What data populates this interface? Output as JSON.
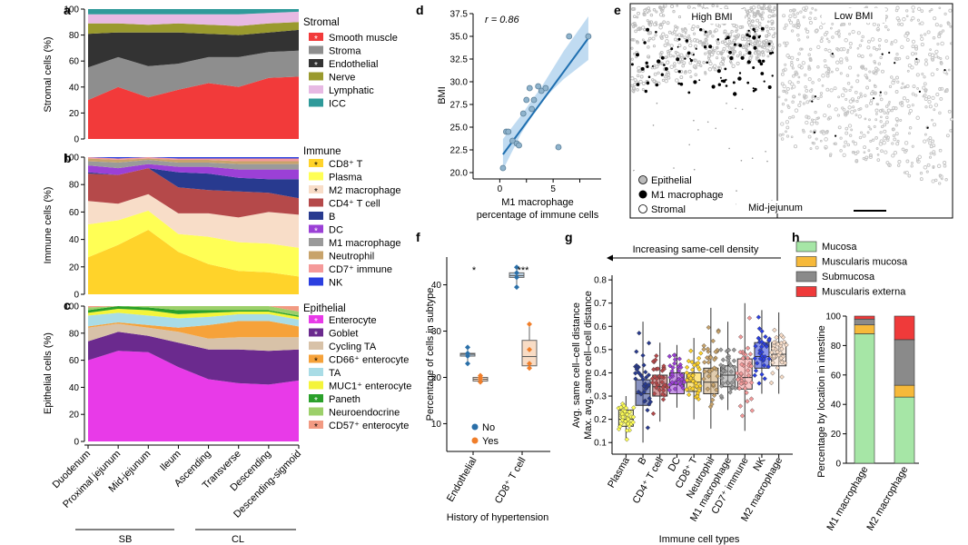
{
  "colors": {
    "smooth_muscle": "#f23a3a",
    "stroma": "#8e8e8e",
    "endothelial": "#333333",
    "nerve": "#9a9a2e",
    "lymphatic": "#e7b9e3",
    "icc": "#2f9a9a",
    "cd8": "#ffd32a",
    "plasma": "#ffff55",
    "m2": "#f8ddc8",
    "cd4": "#b5494a",
    "b": "#283a8f",
    "dc": "#9b40d6",
    "m1": "#9a9a9a",
    "neutrophil": "#c8a36b",
    "cd7": "#f59a9a",
    "nk": "#2b3fe0",
    "enterocyte": "#e83ae8",
    "goblet": "#6b2a8e",
    "cycling_ta": "#d8c2a8",
    "cd66": "#f6a23a",
    "ta": "#a9dce6",
    "muc1": "#f4f43a",
    "paneth": "#2aa02a",
    "neuroendocrine": "#9cd06a",
    "cd57": "#f29a82",
    "no": "#2a6fa8",
    "yes": "#f07e2a",
    "mucosa": "#a6e6a6",
    "muscularis_mucosa": "#f6b93a",
    "submucosa": "#8a8a8a",
    "muscularis_externa": "#ef3a3a",
    "regression": "#1f6fb0",
    "ci": "#b9d7ef"
  },
  "panels": {
    "a": "a",
    "b": "b",
    "c": "c",
    "d": "d",
    "e": "e",
    "f": "f",
    "g": "g",
    "h": "h"
  },
  "regions": [
    "Duodenum",
    "Proximal jejunum",
    "Mid-jejunum",
    "Ileum",
    "Ascending",
    "Transverse",
    "Descending",
    "Descending-sigmoid"
  ],
  "region_groups": {
    "sb": "SB",
    "cl": "CL"
  },
  "chart_data": [
    {
      "id": "a",
      "type": "area",
      "ylabel": "Stromal cells (%)",
      "ylim": [
        0,
        100
      ],
      "yticks": [
        0,
        20,
        40,
        60,
        80,
        100
      ],
      "legend_title": "Stromal",
      "series": [
        {
          "name": "Smooth muscle",
          "color_key": "smooth_muscle",
          "star": true,
          "values": [
            30,
            40,
            32,
            38,
            43,
            40,
            47,
            48
          ]
        },
        {
          "name": "Stroma",
          "color_key": "stroma",
          "star": false,
          "values": [
            25,
            23,
            24,
            20,
            20,
            23,
            20,
            20
          ]
        },
        {
          "name": "Endothelial",
          "color_key": "endothelial",
          "star": true,
          "values": [
            26,
            19,
            26,
            24,
            18,
            17,
            15,
            16
          ]
        },
        {
          "name": "Nerve",
          "color_key": "nerve",
          "star": false,
          "values": [
            8,
            7,
            6,
            7,
            7,
            7,
            7,
            6
          ]
        },
        {
          "name": "Lymphatic",
          "color_key": "lymphatic",
          "star": false,
          "values": [
            7,
            7,
            8,
            7,
            8,
            9,
            8,
            8
          ]
        },
        {
          "name": "ICC",
          "color_key": "icc",
          "star": false,
          "values": [
            4,
            4,
            4,
            4,
            4,
            4,
            3,
            2
          ]
        }
      ]
    },
    {
      "id": "b",
      "type": "area",
      "ylabel": "Immune cells (%)",
      "ylim": [
        0,
        100
      ],
      "yticks": [
        0,
        20,
        40,
        60,
        80,
        100
      ],
      "legend_title": "Immune",
      "series": [
        {
          "name": "CD8⁺ T",
          "color_key": "cd8",
          "star": true,
          "values": [
            27,
            36,
            47,
            31,
            22,
            17,
            16,
            13
          ]
        },
        {
          "name": "Plasma",
          "color_key": "plasma",
          "star": false,
          "values": [
            24,
            18,
            14,
            13,
            20,
            21,
            21,
            21
          ]
        },
        {
          "name": "M2 macrophage",
          "color_key": "m2",
          "star": true,
          "values": [
            17,
            12,
            12,
            15,
            17,
            18,
            23,
            24
          ]
        },
        {
          "name": "CD4⁺ T cell",
          "color_key": "cd4",
          "star": false,
          "values": [
            20,
            21,
            19,
            19,
            17,
            19,
            14,
            12
          ]
        },
        {
          "name": "B",
          "color_key": "b",
          "star": false,
          "values": [
            1,
            0,
            0,
            11,
            12,
            10,
            10,
            14
          ]
        },
        {
          "name": "DC",
          "color_key": "dc",
          "star": true,
          "values": [
            5,
            5,
            3,
            4,
            5,
            6,
            7,
            7
          ]
        },
        {
          "name": "M1 macrophage",
          "color_key": "m1",
          "star": false,
          "values": [
            3,
            4,
            3,
            3,
            3,
            4,
            4,
            4
          ]
        },
        {
          "name": "Neutrophil",
          "color_key": "neutrophil",
          "star": false,
          "values": [
            2,
            2,
            1,
            2,
            2,
            2,
            2,
            2
          ]
        },
        {
          "name": "CD7⁺ immune",
          "color_key": "cd7",
          "star": false,
          "values": [
            1,
            1,
            1,
            1,
            1,
            2,
            2,
            2
          ]
        },
        {
          "name": "NK",
          "color_key": "nk",
          "star": false,
          "values": [
            0,
            1,
            0,
            1,
            1,
            1,
            1,
            1
          ]
        }
      ]
    },
    {
      "id": "c",
      "type": "area",
      "ylabel": "Epithelial cells (%)",
      "ylim": [
        0,
        100
      ],
      "yticks": [
        0,
        20,
        40,
        60,
        80,
        100
      ],
      "legend_title": "Epithelial",
      "series": [
        {
          "name": "Enterocyte",
          "color_key": "enterocyte",
          "star": true,
          "values": [
            60,
            67,
            66,
            55,
            46,
            43,
            42,
            45
          ]
        },
        {
          "name": "Goblet",
          "color_key": "goblet",
          "star": true,
          "values": [
            14,
            14,
            12,
            18,
            22,
            25,
            25,
            23
          ]
        },
        {
          "name": "Cycling TA",
          "color_key": "cycling_ta",
          "star": false,
          "values": [
            10,
            6,
            6,
            8,
            8,
            9,
            10,
            9
          ]
        },
        {
          "name": "CD66⁺ enterocyte",
          "color_key": "cd66",
          "star": true,
          "values": [
            1,
            1,
            2,
            3,
            10,
            12,
            12,
            8
          ]
        },
        {
          "name": "TA",
          "color_key": "ta",
          "star": false,
          "values": [
            8,
            7,
            7,
            7,
            6,
            5,
            5,
            5
          ]
        },
        {
          "name": "MUC1⁺ enterocyte",
          "color_key": "muc1",
          "star": false,
          "values": [
            2,
            3,
            4,
            3,
            3,
            2,
            2,
            2
          ]
        },
        {
          "name": "Paneth",
          "color_key": "paneth",
          "star": true,
          "values": [
            2,
            2,
            2,
            3,
            2,
            1,
            1,
            1
          ]
        },
        {
          "name": "Neuroendocrine",
          "color_key": "neuroendocrine",
          "star": false,
          "values": [
            2,
            0,
            1,
            3,
            3,
            3,
            3,
            3
          ]
        },
        {
          "name": "CD57⁺ enterocyte",
          "color_key": "cd57",
          "star": true,
          "values": [
            1,
            0,
            0,
            0,
            0,
            0,
            0,
            4
          ]
        }
      ]
    },
    {
      "id": "d",
      "type": "scatter",
      "xlabel_lines": [
        "M1 macrophage",
        "percentage of immune cells"
      ],
      "ylabel": "BMI",
      "xlim": [
        -2.5,
        9.5
      ],
      "ylim": [
        19.5,
        37.5
      ],
      "xticks": [
        0,
        2.5,
        5,
        7.5
      ],
      "xtick_labels": [
        "0",
        "",
        "5",
        ""
      ],
      "yticks": [
        20,
        22.5,
        25,
        27.5,
        30,
        32.5,
        35,
        37.5
      ],
      "ytick_labels": [
        "20.0",
        "22.5",
        "25.0",
        "27.5",
        "30.0",
        "32.5",
        "35.0",
        "37.5"
      ],
      "annotation": "r = 0.86",
      "x": [
        0.3,
        0.6,
        0.8,
        1.2,
        1.6,
        1.8,
        2.2,
        2.5,
        2.8,
        3.0,
        3.2,
        3.6,
        3.9,
        4.3,
        5.5,
        6.5,
        8.3
      ],
      "y": [
        20.5,
        24.5,
        24.5,
        23.5,
        23.2,
        23.0,
        26.5,
        28.0,
        29.3,
        27.0,
        28.0,
        29.5,
        29.0,
        29.3,
        22.8,
        35.0,
        35.0
      ],
      "fit": {
        "x": [
          0.3,
          8.3
        ],
        "y": [
          22.0,
          34.8
        ]
      }
    },
    {
      "id": "f",
      "type": "box",
      "ylabel": "Percentage of cells in subtype",
      "xlabel": "History of hypertension",
      "ylim": [
        4,
        46
      ],
      "yticks": [
        10,
        20,
        30,
        40
      ],
      "categories": [
        "Endothelial",
        "CD8⁺ T cell"
      ],
      "significance": [
        "*",
        "***"
      ],
      "legend": [
        "No",
        "Yes"
      ],
      "groups": [
        {
          "category": "Endothelial",
          "series": "No",
          "q1": 24.6,
          "median": 25.0,
          "q3": 25.2,
          "whisker_low": 23.0,
          "whisker_high": 26.5,
          "points": [
            23.0,
            24.6,
            25.2,
            26.5
          ]
        },
        {
          "category": "Endothelial",
          "series": "Yes",
          "q1": 19.2,
          "median": 19.6,
          "q3": 20.0,
          "whisker_low": 19.0,
          "whisker_high": 20.4,
          "points": [
            19.0,
            19.6,
            20.0,
            20.4
          ]
        },
        {
          "category": "CD8⁺ T cell",
          "series": "No",
          "q1": 41.6,
          "median": 42.0,
          "q3": 42.6,
          "whisker_low": 39.5,
          "whisker_high": 43.8,
          "points": [
            39.5,
            41.6,
            42.6,
            43.8
          ]
        },
        {
          "category": "CD8⁺ T cell",
          "series": "Yes",
          "q1": 22.5,
          "median": 24.5,
          "q3": 28.0,
          "whisker_low": 22.0,
          "whisker_high": 31.5,
          "points": [
            22.0,
            23.0,
            26.0,
            31.5
          ]
        }
      ]
    },
    {
      "id": "g",
      "type": "box",
      "title": "Increasing same-cell density",
      "ylabel_lines": [
        "Avg. same cell–cell distance",
        "Max. avg. same cell–cell distance"
      ],
      "xlabel": "Immune cell types",
      "ylim": [
        0.05,
        0.82
      ],
      "yticks": [
        0.1,
        0.2,
        0.3,
        0.4,
        0.5,
        0.6,
        0.7,
        0.8
      ],
      "ytick_labels": [
        "0.1",
        "0.2",
        "0.3",
        "0.4",
        "0.5",
        "0.6",
        "0.7",
        "0.8"
      ],
      "categories": [
        "Plasma",
        "B",
        "CD4⁺ T cell",
        "DC",
        "CD8⁺ T",
        "Neutrophil",
        "M1 macrophage",
        "CD7⁺ immune",
        "NK",
        "M2 macrophage"
      ],
      "boxes": [
        {
          "category": "Plasma",
          "color_key": "plasma",
          "q1": 0.17,
          "median": 0.2,
          "q3": 0.24,
          "whisker_low": 0.11,
          "whisker_high": 0.3
        },
        {
          "category": "B",
          "color_key": "b",
          "q1": 0.26,
          "median": 0.31,
          "q3": 0.37,
          "whisker_low": 0.1,
          "whisker_high": 0.62
        },
        {
          "category": "CD4⁺ T cell",
          "color_key": "cd4",
          "q1": 0.3,
          "median": 0.34,
          "q3": 0.39,
          "whisker_low": 0.19,
          "whisker_high": 0.53
        },
        {
          "category": "DC",
          "color_key": "dc",
          "q1": 0.31,
          "median": 0.35,
          "q3": 0.4,
          "whisker_low": 0.25,
          "whisker_high": 0.52
        },
        {
          "category": "CD8⁺ T",
          "color_key": "cd8",
          "q1": 0.32,
          "median": 0.36,
          "q3": 0.4,
          "whisker_low": 0.2,
          "whisker_high": 0.55
        },
        {
          "category": "Neutrophil",
          "color_key": "neutrophil",
          "q1": 0.31,
          "median": 0.36,
          "q3": 0.42,
          "whisker_low": 0.16,
          "whisker_high": 0.68
        },
        {
          "category": "M1 macrophage",
          "color_key": "m1",
          "q1": 0.34,
          "median": 0.39,
          "q3": 0.43,
          "whisker_low": 0.24,
          "whisker_high": 0.62
        },
        {
          "category": "CD7⁺ immune",
          "color_key": "cd7",
          "q1": 0.33,
          "median": 0.38,
          "q3": 0.46,
          "whisker_low": 0.15,
          "whisker_high": 0.7
        },
        {
          "category": "NK",
          "color_key": "nk",
          "q1": 0.42,
          "median": 0.47,
          "q3": 0.53,
          "whisker_low": 0.31,
          "whisker_high": 0.67
        },
        {
          "category": "M2 macrophage",
          "color_key": "m2",
          "q1": 0.43,
          "median": 0.48,
          "q3": 0.53,
          "whisker_low": 0.31,
          "whisker_high": 0.66
        }
      ]
    },
    {
      "id": "h",
      "type": "bar",
      "stacked": true,
      "ylabel": "Percentage by location in intestine",
      "ylim": [
        0,
        100
      ],
      "yticks": [
        0,
        20,
        40,
        60,
        80,
        100
      ],
      "categories": [
        "M1 macrophage",
        "M2 macrophage"
      ],
      "series": [
        {
          "name": "Mucosa",
          "color_key": "mucosa",
          "values": [
            88,
            45
          ]
        },
        {
          "name": "Muscularis mucosa",
          "color_key": "muscularis_mucosa",
          "values": [
            6,
            8
          ]
        },
        {
          "name": "Submucosa",
          "color_key": "submucosa",
          "values": [
            4,
            31
          ]
        },
        {
          "name": "Muscularis externa",
          "color_key": "muscularis_externa",
          "values": [
            2,
            16
          ]
        }
      ]
    }
  ],
  "image_panel": {
    "left_label": "High BMI",
    "right_label": "Low BMI",
    "legend": [
      "Epithelial",
      "M1 macrophage",
      "Stromal"
    ],
    "region_label": "Mid-jejunum"
  }
}
